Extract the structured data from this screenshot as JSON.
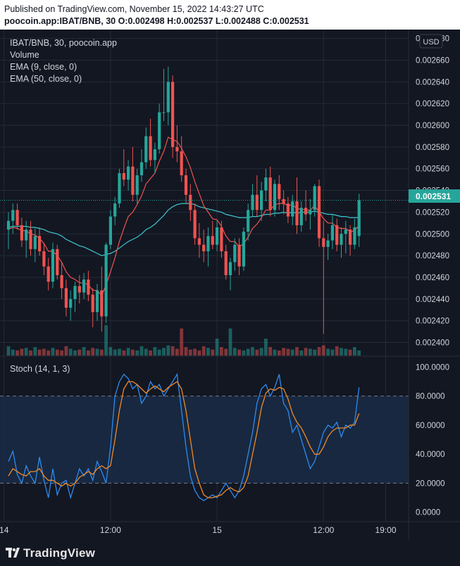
{
  "header": {
    "published": "Published on TradingView.com, November 15, 2022 14:43:27 UTC",
    "symbol_line": "poocoin.app:IBAT/BNB, 30",
    "ohlc": "O:0.002498 H:0.002537 L:0.002488 C:0.002531"
  },
  "legend": {
    "symbol": "IBAT/BNB, 30, poocoin.app",
    "volume": "Volume",
    "ema9": "EMA (9, close, 0)",
    "ema50": "EMA (50, close, 0)",
    "stoch": "Stoch (14, 1, 3)"
  },
  "currency_badge": "USD",
  "last_price_label": "0.002531",
  "colors": {
    "bg": "#131722",
    "grid": "#242a38",
    "up": "#26a69a",
    "down": "#ef5350",
    "ema9": "#ef5350",
    "ema50": "#3cc8d0",
    "k": "#2d8bf0",
    "d": "#f08a24",
    "band": "#1a2a44"
  },
  "footer": {
    "brand": "TradingView"
  },
  "chart_data": [
    {
      "type": "candlestick",
      "title": "IBAT/BNB, 30, poocoin.app",
      "price_ticks": [
        "0.002680",
        "0.002660",
        "0.002640",
        "0.002620",
        "0.002600",
        "0.002580",
        "0.002560",
        "0.002540",
        "0.002520",
        "0.002500",
        "0.002480",
        "0.002460",
        "0.002440",
        "0.002420",
        "0.002400"
      ],
      "ylim": [
        0.002388,
        0.002683
      ],
      "x_ticks": [
        {
          "label": "14",
          "bar": -1
        },
        {
          "label": "12:00",
          "bar": 23
        },
        {
          "label": "15",
          "bar": 47
        },
        {
          "label": "12:00",
          "bar": 71
        },
        {
          "label": "19:00",
          "bar": 85
        }
      ],
      "candles": [
        [
          0.002504,
          0.00252,
          0.002486,
          0.002512
        ],
        [
          0.002512,
          0.002528,
          0.0025,
          0.002522
        ],
        [
          0.002522,
          0.002528,
          0.002504,
          0.002508
        ],
        [
          0.002508,
          0.002515,
          0.002488,
          0.002494
        ],
        [
          0.002494,
          0.002512,
          0.002478,
          0.002504
        ],
        [
          0.002504,
          0.002512,
          0.00248,
          0.002486
        ],
        [
          0.002486,
          0.002505,
          0.002474,
          0.002498
        ],
        [
          0.002498,
          0.002506,
          0.00248,
          0.002484
        ],
        [
          0.002484,
          0.002492,
          0.002462,
          0.00247
        ],
        [
          0.00247,
          0.002478,
          0.002448,
          0.002456
        ],
        [
          0.002456,
          0.002492,
          0.00245,
          0.002486
        ],
        [
          0.002486,
          0.00249,
          0.002458,
          0.002462
        ],
        [
          0.002462,
          0.002474,
          0.00244,
          0.00245
        ],
        [
          0.00245,
          0.002458,
          0.002424,
          0.002432
        ],
        [
          0.002432,
          0.002448,
          0.00242,
          0.00244
        ],
        [
          0.00244,
          0.002456,
          0.002428,
          0.002452
        ],
        [
          0.002452,
          0.002462,
          0.002436,
          0.002446
        ],
        [
          0.002446,
          0.002464,
          0.00244,
          0.002458
        ],
        [
          0.002458,
          0.002466,
          0.002438,
          0.002444
        ],
        [
          0.002444,
          0.00245,
          0.002414,
          0.002428
        ],
        [
          0.002428,
          0.002454,
          0.00242,
          0.002448
        ],
        [
          0.002448,
          0.00247,
          0.00241,
          0.002424
        ],
        [
          0.002424,
          0.002492,
          0.002418,
          0.00249
        ],
        [
          0.00249,
          0.002522,
          0.002486,
          0.002516
        ],
        [
          0.002516,
          0.002534,
          0.002508,
          0.002528
        ],
        [
          0.002528,
          0.00256,
          0.002524,
          0.002556
        ],
        [
          0.002556,
          0.002578,
          0.002544,
          0.00255
        ],
        [
          0.00255,
          0.002568,
          0.00254,
          0.002562
        ],
        [
          0.002562,
          0.00258,
          0.00253,
          0.002536
        ],
        [
          0.002536,
          0.00256,
          0.002528,
          0.002554
        ],
        [
          0.002554,
          0.002578,
          0.002548,
          0.002566
        ],
        [
          0.002566,
          0.002598,
          0.00256,
          0.00259
        ],
        [
          0.00259,
          0.002606,
          0.002562,
          0.002568
        ],
        [
          0.002568,
          0.002584,
          0.002556,
          0.002578
        ],
        [
          0.002578,
          0.00262,
          0.002574,
          0.002612
        ],
        [
          0.002612,
          0.002652,
          0.002604,
          0.002612
        ],
        [
          0.002612,
          0.002654,
          0.0026,
          0.00264
        ],
        [
          0.00264,
          0.002646,
          0.00257,
          0.00258
        ],
        [
          0.00258,
          0.0026,
          0.002566,
          0.002576
        ],
        [
          0.002576,
          0.00259,
          0.002548,
          0.002554
        ],
        [
          0.002554,
          0.00256,
          0.002528,
          0.002536
        ],
        [
          0.002536,
          0.002546,
          0.002512,
          0.002522
        ],
        [
          0.002522,
          0.002528,
          0.00249,
          0.002496
        ],
        [
          0.002496,
          0.00251,
          0.002478,
          0.00249
        ],
        [
          0.00249,
          0.002504,
          0.002474,
          0.002484
        ],
        [
          0.002484,
          0.002506,
          0.00247,
          0.002498
        ],
        [
          0.002498,
          0.002512,
          0.002486,
          0.00249
        ],
        [
          0.00249,
          0.002512,
          0.002484,
          0.002506
        ],
        [
          0.002506,
          0.002512,
          0.002478,
          0.002484
        ],
        [
          0.002484,
          0.00249,
          0.002458,
          0.002462
        ],
        [
          0.002462,
          0.002478,
          0.002448,
          0.002474
        ],
        [
          0.002474,
          0.002496,
          0.002466,
          0.00249
        ],
        [
          0.00249,
          0.002496,
          0.002462,
          0.00247
        ],
        [
          0.00247,
          0.002506,
          0.002466,
          0.002502
        ],
        [
          0.002502,
          0.002528,
          0.002494,
          0.002522
        ],
        [
          0.002522,
          0.002546,
          0.002516,
          0.002536
        ],
        [
          0.002536,
          0.002554,
          0.002516,
          0.002522
        ],
        [
          0.002522,
          0.002548,
          0.002512,
          0.00254
        ],
        [
          0.00254,
          0.00256,
          0.00253,
          0.002552
        ],
        [
          0.002552,
          0.002562,
          0.002516,
          0.002522
        ],
        [
          0.002522,
          0.00255,
          0.002516,
          0.002546
        ],
        [
          0.002546,
          0.002554,
          0.002522,
          0.002532
        ],
        [
          0.002532,
          0.00254,
          0.002518,
          0.002528
        ],
        [
          0.002528,
          0.002534,
          0.00251,
          0.002516
        ],
        [
          0.002516,
          0.002536,
          0.002508,
          0.00253
        ],
        [
          0.00253,
          0.002552,
          0.0025,
          0.002508
        ],
        [
          0.002508,
          0.00253,
          0.002502,
          0.002524
        ],
        [
          0.002524,
          0.00254,
          0.002512,
          0.002518
        ],
        [
          0.002518,
          0.002532,
          0.002504,
          0.002522
        ],
        [
          0.002522,
          0.002546,
          0.002516,
          0.002544
        ],
        [
          0.002544,
          0.00255,
          0.002488,
          0.002496
        ],
        [
          0.002496,
          0.002512,
          0.002408,
          0.002488
        ],
        [
          0.002488,
          0.0025,
          0.002476,
          0.002494
        ],
        [
          0.002494,
          0.002518,
          0.002486,
          0.002508
        ],
        [
          0.002508,
          0.002514,
          0.002484,
          0.00249
        ],
        [
          0.00249,
          0.002506,
          0.002478,
          0.0025
        ],
        [
          0.0025,
          0.002512,
          0.002482,
          0.002504
        ],
        [
          0.002504,
          0.002508,
          0.00248,
          0.00249
        ],
        [
          0.00249,
          0.002514,
          0.002486,
          0.002506
        ],
        [
          0.002498,
          0.002537,
          0.002488,
          0.002531
        ]
      ],
      "ema9": [
        0.002504,
        0.002506,
        0.002505,
        0.002503,
        0.002503,
        0.0025,
        0.002499,
        0.002496,
        0.002491,
        0.002484,
        0.002484,
        0.00248,
        0.002474,
        0.002465,
        0.00246,
        0.002458,
        0.002455,
        0.002455,
        0.002453,
        0.002448,
        0.002448,
        0.002443,
        0.002453,
        0.002465,
        0.002478,
        0.002493,
        0.002505,
        0.002516,
        0.00252,
        0.002527,
        0.002535,
        0.002546,
        0.002551,
        0.002556,
        0.002567,
        0.002576,
        0.002589,
        0.002587,
        0.002585,
        0.002579,
        0.002571,
        0.002561,
        0.002548,
        0.002537,
        0.002526,
        0.00252,
        0.002514,
        0.002513,
        0.002507,
        0.002498,
        0.002493,
        0.002493,
        0.002488,
        0.002491,
        0.002497,
        0.002505,
        0.002509,
        0.002515,
        0.002522,
        0.002522,
        0.002527,
        0.002528,
        0.002528,
        0.002526,
        0.002527,
        0.002523,
        0.002523,
        0.002522,
        0.002522,
        0.002526,
        0.00252,
        0.002514,
        0.00251,
        0.00251,
        0.002506,
        0.002505,
        0.002505,
        0.002502,
        0.002503,
        0.002508
      ],
      "ema50": [
        0.002506,
        0.002507,
        0.002507,
        0.002507,
        0.002507,
        0.002506,
        0.002506,
        0.002505,
        0.002504,
        0.002502,
        0.002501,
        0.0025,
        0.002498,
        0.002495,
        0.002493,
        0.002491,
        0.002489,
        0.002488,
        0.002486,
        0.002484,
        0.002482,
        0.00248,
        0.002481,
        0.002482,
        0.002484,
        0.002487,
        0.00249,
        0.002493,
        0.002495,
        0.002497,
        0.0025,
        0.002504,
        0.002506,
        0.002509,
        0.002513,
        0.002517,
        0.002522,
        0.002525,
        0.002527,
        0.002528,
        0.002528,
        0.002528,
        0.002527,
        0.002525,
        0.002524,
        0.002523,
        0.002522,
        0.002521,
        0.00252,
        0.002518,
        0.002517,
        0.002516,
        0.002515,
        0.002515,
        0.002515,
        0.002516,
        0.002516,
        0.002517,
        0.002518,
        0.002518,
        0.002519,
        0.002519,
        0.00252,
        0.002519,
        0.00252,
        0.002519,
        0.00252,
        0.00252,
        0.00252,
        0.002521,
        0.00252,
        0.002519,
        0.002518,
        0.002518,
        0.002517,
        0.002516,
        0.002516,
        0.002515,
        0.002515,
        0.002515
      ],
      "volume": [
        0.55,
        0.35,
        0.3,
        0.4,
        0.45,
        0.3,
        0.5,
        0.35,
        0.4,
        0.3,
        0.45,
        0.35,
        0.3,
        0.55,
        0.4,
        0.3,
        0.35,
        0.5,
        0.3,
        0.45,
        0.4,
        0.35,
        1.8,
        0.5,
        0.35,
        0.4,
        0.3,
        0.45,
        0.35,
        0.3,
        0.55,
        0.4,
        0.3,
        0.5,
        0.35,
        0.45,
        0.6,
        0.55,
        0.4,
        1.6,
        0.5,
        0.35,
        0.4,
        0.3,
        0.55,
        0.45,
        0.35,
        1.0,
        0.5,
        0.4,
        1.6,
        0.45,
        0.35,
        0.3,
        0.4,
        0.5,
        0.35,
        0.45,
        1.0,
        0.5,
        0.35,
        0.3,
        0.45,
        0.4,
        0.35,
        0.5,
        0.3,
        0.45,
        0.4,
        0.35,
        0.5,
        0.6,
        0.4,
        0.35,
        0.55,
        0.45,
        0.4,
        0.35,
        0.5,
        0.3
      ]
    },
    {
      "type": "line",
      "title": "Stoch (14, 1, 3)",
      "y_ticks": [
        "100.0000",
        "80.0000",
        "60.0000",
        "40.0000",
        "20.0000",
        "0.0000"
      ],
      "ylim": [
        -6,
        107
      ],
      "band": [
        20,
        80
      ],
      "series": [
        {
          "key": "k",
          "values": [
            35,
            42,
            26,
            20,
            32,
            25,
            20,
            38,
            22,
            10,
            30,
            12,
            20,
            22,
            10,
            20,
            30,
            25,
            30,
            22,
            35,
            28,
            20,
            45,
            80,
            90,
            95,
            92,
            85,
            88,
            75,
            80,
            90,
            85,
            88,
            80,
            85,
            90,
            95,
            70,
            45,
            25,
            15,
            10,
            8,
            10,
            12,
            10,
            15,
            20,
            15,
            10,
            15,
            25,
            40,
            55,
            75,
            85,
            88,
            80,
            86,
            95,
            75,
            70,
            55,
            60,
            50,
            40,
            30,
            35,
            45,
            55,
            60,
            58,
            62,
            52,
            60,
            58,
            62,
            86
          ]
        },
        {
          "key": "d",
          "values": [
            25,
            30,
            28,
            26,
            25,
            28,
            28,
            30,
            25,
            22,
            22,
            20,
            18,
            20,
            18,
            20,
            24,
            26,
            28,
            26,
            30,
            32,
            30,
            32,
            50,
            70,
            85,
            90,
            90,
            88,
            85,
            82,
            85,
            87,
            85,
            83,
            86,
            88,
            90,
            85,
            70,
            50,
            30,
            20,
            12,
            10,
            10,
            11,
            12,
            15,
            17,
            15,
            14,
            17,
            25,
            40,
            55,
            72,
            82,
            85,
            84,
            86,
            85,
            78,
            68,
            62,
            58,
            52,
            45,
            40,
            40,
            45,
            52,
            56,
            58,
            58,
            58,
            60,
            60,
            68
          ]
        }
      ]
    }
  ]
}
